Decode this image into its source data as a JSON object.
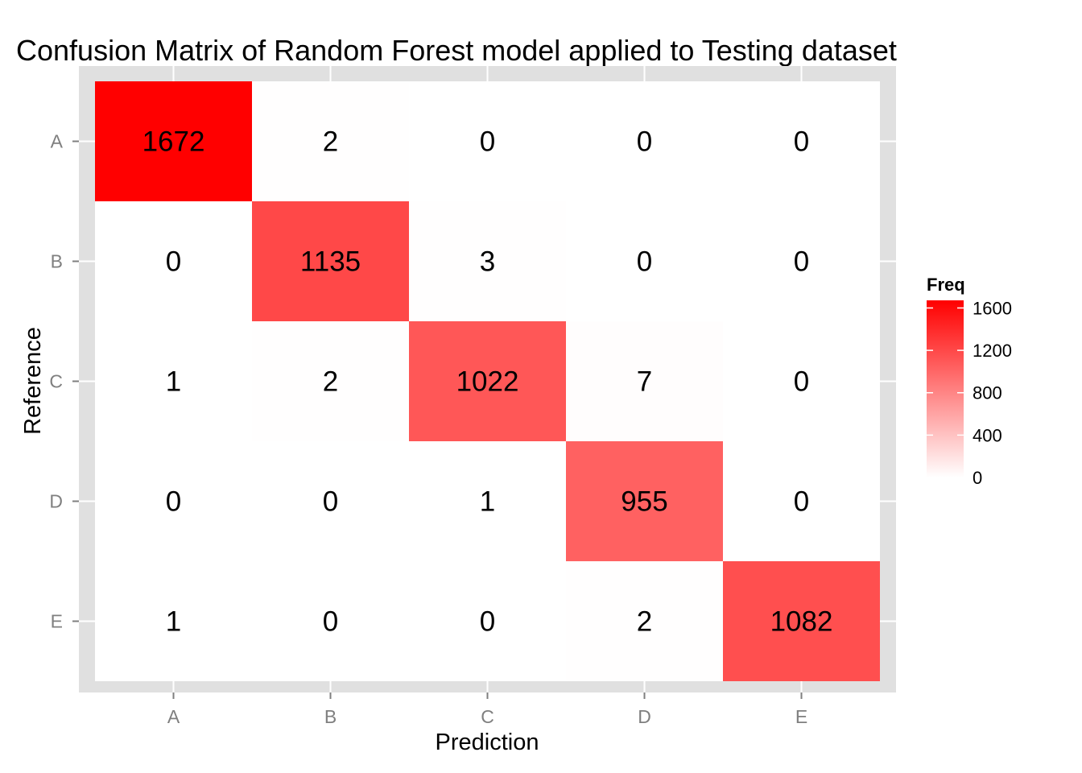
{
  "chart_data": {
    "type": "heatmap",
    "title": "Confusion Matrix of Random Forest model applied to Testing dataset",
    "xlabel": "Prediction",
    "ylabel": "Reference",
    "x_categories": [
      "A",
      "B",
      "C",
      "D",
      "E"
    ],
    "y_categories": [
      "A",
      "B",
      "C",
      "D",
      "E"
    ],
    "matrix": [
      [
        1672,
        2,
        0,
        0,
        0
      ],
      [
        0,
        1135,
        3,
        0,
        0
      ],
      [
        1,
        2,
        1022,
        7,
        0
      ],
      [
        0,
        0,
        1,
        955,
        0
      ],
      [
        1,
        0,
        0,
        2,
        1082
      ]
    ],
    "legend": {
      "title": "Freq",
      "ticks": [
        0,
        400,
        800,
        1200,
        1600
      ],
      "tick_labels": [
        "0",
        "400",
        "800",
        "1200",
        "1600"
      ],
      "range": [
        0,
        1672
      ],
      "placement": "right"
    },
    "colors": {
      "low": "#ffffff",
      "high": "#ff0000",
      "panel_background": "#e0e0e0",
      "grid": "#ffffff"
    },
    "grid": true
  }
}
